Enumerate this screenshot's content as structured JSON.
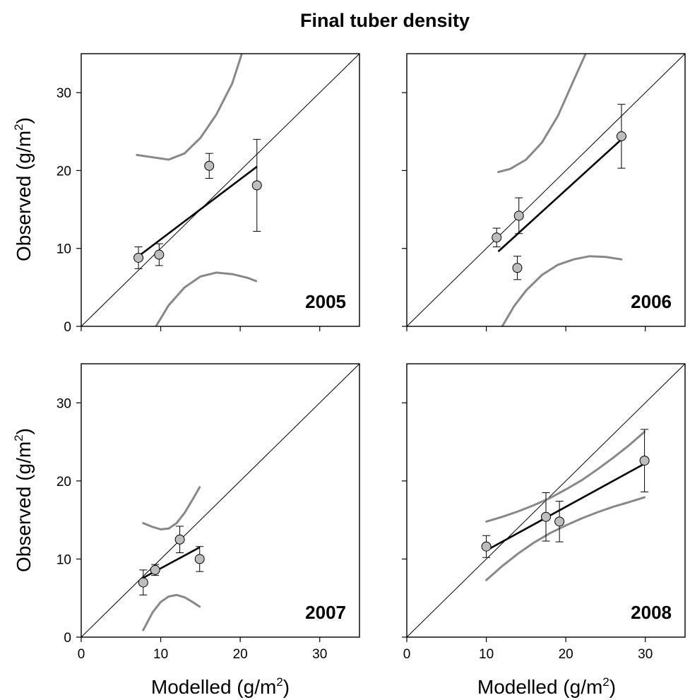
{
  "figure_title": "Final tuber density",
  "axis_labels": {
    "x": {
      "main": "Modelled (g/m",
      "sup": "2",
      "close": ")"
    },
    "y": {
      "main": "Observed (g/m",
      "sup": "2",
      "close": ")"
    }
  },
  "colors": {
    "regression_line": "#000000",
    "confidence_band": "#888888",
    "one_to_one": "#000000",
    "marker_fill": "#bdbdbd",
    "marker_edge": "#000000"
  },
  "chart_data": [
    {
      "type": "scatter",
      "year_label": "2005",
      "xlim": [
        0,
        35
      ],
      "ylim": [
        0,
        35
      ],
      "xticks": [
        0,
        10,
        20,
        30
      ],
      "yticks": [
        0,
        10,
        20,
        30
      ],
      "show_x_tick_labels": false,
      "show_y_tick_labels": true,
      "points": [
        {
          "x": 7.2,
          "y": 8.8,
          "err": 1.4
        },
        {
          "x": 9.8,
          "y": 9.2,
          "err": 1.4
        },
        {
          "x": 16.1,
          "y": 20.6,
          "err": 1.6
        },
        {
          "x": 22.1,
          "y": 18.1,
          "err": 5.9
        }
      ],
      "regression": {
        "x": [
          7.2,
          22.1
        ],
        "y": [
          9.0,
          20.5
        ]
      },
      "upper_band": [
        [
          7,
          22
        ],
        [
          9,
          21.7
        ],
        [
          11,
          21.4
        ],
        [
          13,
          22.2
        ],
        [
          15,
          24.2
        ],
        [
          17,
          27.2
        ],
        [
          19,
          31.2
        ],
        [
          20.2,
          35
        ]
      ],
      "lower_band": [
        [
          9.4,
          0
        ],
        [
          11,
          2.7
        ],
        [
          13,
          5.0
        ],
        [
          15,
          6.4
        ],
        [
          17,
          6.9
        ],
        [
          19,
          6.7
        ],
        [
          21,
          6.2
        ],
        [
          22,
          5.8
        ]
      ]
    },
    {
      "type": "scatter",
      "year_label": "2006",
      "xlim": [
        0,
        35
      ],
      "ylim": [
        0,
        35
      ],
      "xticks": [
        0,
        10,
        20,
        30
      ],
      "yticks": [
        0,
        10,
        20,
        30
      ],
      "show_x_tick_labels": false,
      "show_y_tick_labels": false,
      "points": [
        {
          "x": 11.3,
          "y": 11.4,
          "err": 1.2
        },
        {
          "x": 14.1,
          "y": 14.2,
          "err": 2.3
        },
        {
          "x": 13.9,
          "y": 7.5,
          "err": 1.5
        },
        {
          "x": 27.0,
          "y": 24.4,
          "err": 4.1
        }
      ],
      "regression": {
        "x": [
          11.5,
          27.0
        ],
        "y": [
          9.6,
          24.0
        ]
      },
      "upper_band": [
        [
          11.5,
          19.8
        ],
        [
          13,
          20.2
        ],
        [
          15,
          21.4
        ],
        [
          17,
          23.6
        ],
        [
          19,
          27.0
        ],
        [
          21,
          31.6
        ],
        [
          22.5,
          35
        ]
      ],
      "lower_band": [
        [
          12,
          0
        ],
        [
          13.5,
          2.6
        ],
        [
          15,
          4.6
        ],
        [
          17,
          6.6
        ],
        [
          19,
          7.9
        ],
        [
          21,
          8.6
        ],
        [
          23,
          9.0
        ],
        [
          25,
          8.9
        ],
        [
          27,
          8.6
        ]
      ]
    },
    {
      "type": "scatter",
      "year_label": "2007",
      "xlim": [
        0,
        35
      ],
      "ylim": [
        0,
        35
      ],
      "xticks": [
        0,
        10,
        20,
        30
      ],
      "yticks": [
        0,
        10,
        20,
        30
      ],
      "show_x_tick_labels": true,
      "show_y_tick_labels": true,
      "points": [
        {
          "x": 7.8,
          "y": 7.0,
          "err": 1.6
        },
        {
          "x": 9.3,
          "y": 8.6,
          "err": 0.7
        },
        {
          "x": 12.4,
          "y": 12.5,
          "err": 1.7
        },
        {
          "x": 14.9,
          "y": 10.0,
          "err": 1.6
        }
      ],
      "regression": {
        "x": [
          7.8,
          14.9
        ],
        "y": [
          7.6,
          11.5
        ]
      },
      "upper_band": [
        [
          7.8,
          14.6
        ],
        [
          9,
          14.1
        ],
        [
          10,
          13.8
        ],
        [
          11,
          13.9
        ],
        [
          12,
          14.6
        ],
        [
          13,
          15.9
        ],
        [
          14,
          17.6
        ],
        [
          14.9,
          19.2
        ]
      ],
      "lower_band": [
        [
          7.8,
          0.9
        ],
        [
          9,
          3.2
        ],
        [
          10,
          4.5
        ],
        [
          11,
          5.2
        ],
        [
          12,
          5.4
        ],
        [
          13,
          5.1
        ],
        [
          14,
          4.5
        ],
        [
          14.9,
          3.9
        ]
      ]
    },
    {
      "type": "scatter",
      "year_label": "2008",
      "xlim": [
        0,
        35
      ],
      "ylim": [
        0,
        35
      ],
      "xticks": [
        0,
        10,
        20,
        30
      ],
      "yticks": [
        0,
        10,
        20,
        30
      ],
      "show_x_tick_labels": true,
      "show_y_tick_labels": false,
      "points": [
        {
          "x": 10.0,
          "y": 11.6,
          "err": 1.4
        },
        {
          "x": 17.5,
          "y": 15.4,
          "err": 3.1
        },
        {
          "x": 19.2,
          "y": 14.8,
          "err": 2.6
        },
        {
          "x": 29.9,
          "y": 22.6,
          "err": 4.0
        }
      ],
      "regression": {
        "x": [
          10.0,
          29.9
        ],
        "y": [
          11.1,
          22.2
        ]
      },
      "upper_band": [
        [
          10,
          14.8
        ],
        [
          12,
          15.4
        ],
        [
          14,
          16.1
        ],
        [
          16,
          16.9
        ],
        [
          18,
          17.8
        ],
        [
          20,
          18.9
        ],
        [
          22,
          20.1
        ],
        [
          24,
          21.5
        ],
        [
          26,
          23.0
        ],
        [
          28,
          24.6
        ],
        [
          29.9,
          26.3
        ]
      ],
      "lower_band": [
        [
          10,
          7.3
        ],
        [
          12,
          9.1
        ],
        [
          14,
          10.7
        ],
        [
          16,
          12.1
        ],
        [
          18,
          13.3
        ],
        [
          20,
          14.3
        ],
        [
          22,
          15.2
        ],
        [
          24,
          16.0
        ],
        [
          26,
          16.7
        ],
        [
          28,
          17.3
        ],
        [
          29.9,
          17.9
        ]
      ]
    }
  ]
}
